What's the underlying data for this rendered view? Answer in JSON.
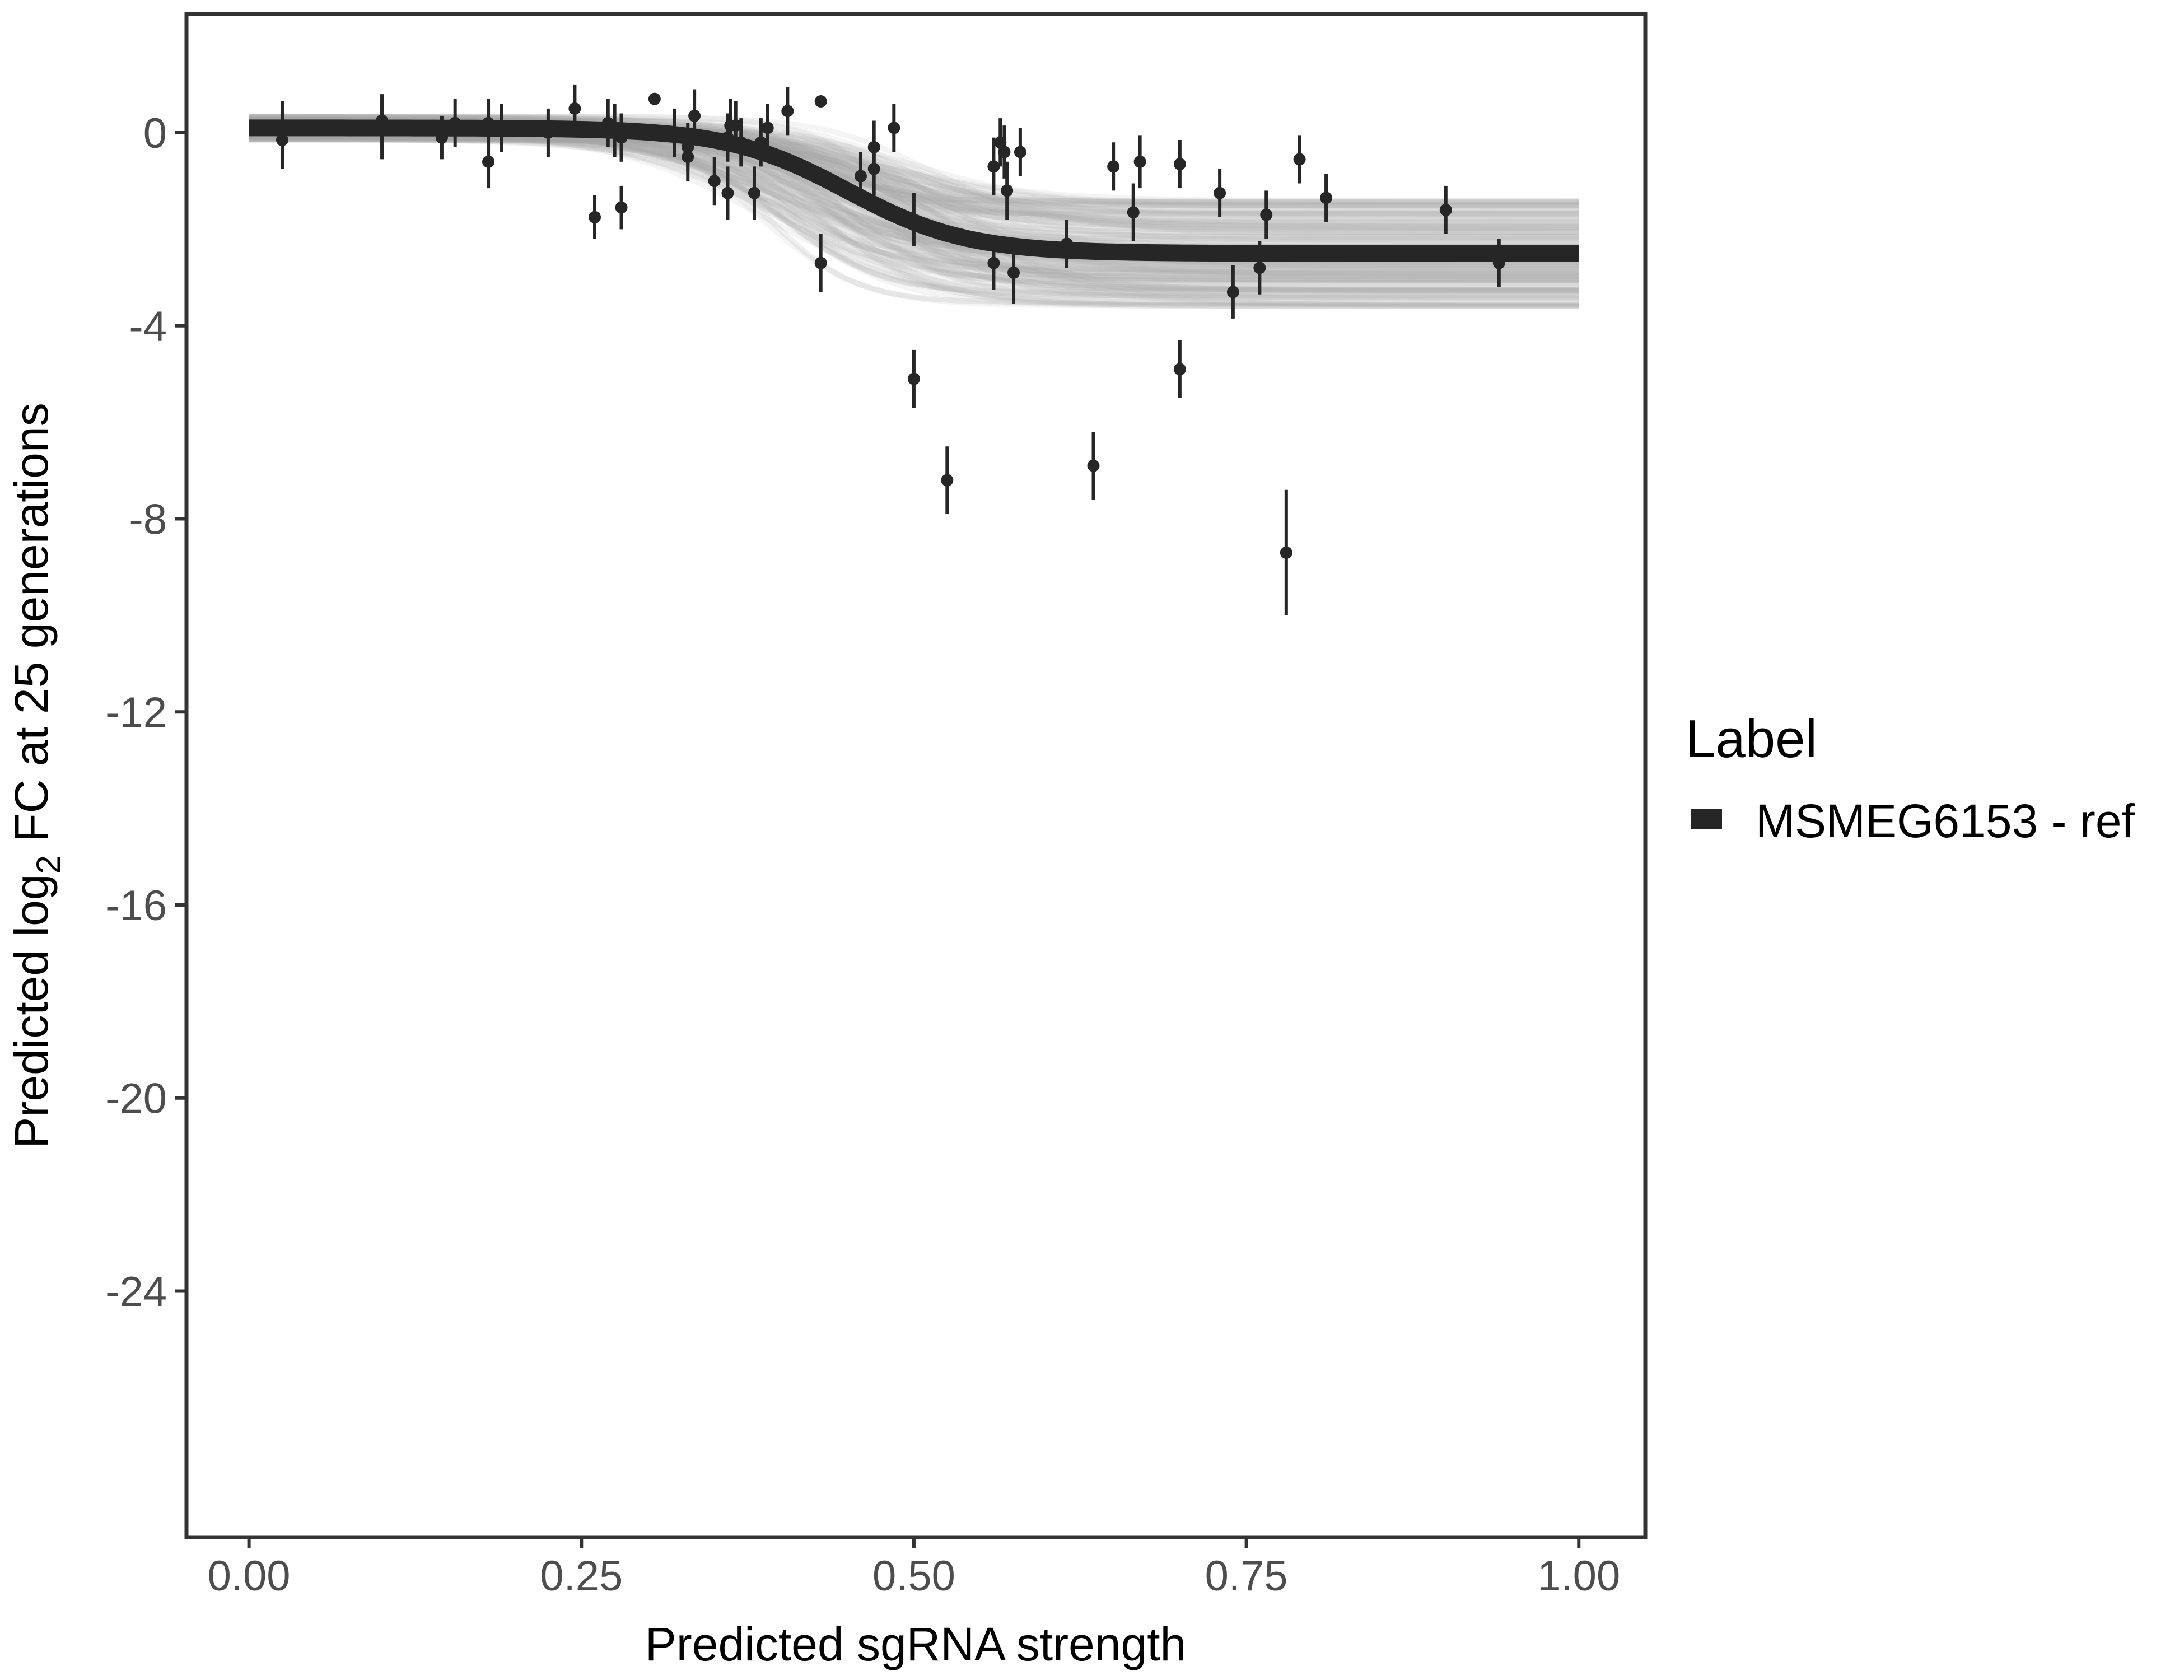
{
  "chart_data": {
    "type": "scatter",
    "title": "",
    "xlabel": "Predicted sgRNA strength",
    "ylabel_parts": [
      "Predicted  log",
      "2",
      " FC at 25 generations"
    ],
    "xlim": [
      -0.047,
      1.05
    ],
    "ylim": [
      -29.1,
      2.46
    ],
    "x_ticks": [
      0,
      0.25,
      0.5,
      0.75,
      1
    ],
    "x_tick_labels": [
      "0.00",
      "0.25",
      "0.50",
      "0.75",
      "1.00"
    ],
    "y_ticks": [
      0,
      -4,
      -8,
      -12,
      -16,
      -20,
      -24
    ],
    "y_tick_labels": [
      "0",
      "-4",
      "-8",
      "-12",
      "-16",
      "-20",
      "-24"
    ],
    "grid": false,
    "legend": {
      "title": "Label",
      "placement": "right",
      "entries": [
        {
          "label": "MSMEG6153 - ref",
          "color": "#262626"
        }
      ]
    },
    "fit_curve": {
      "model": "logistic",
      "upper": 0.1,
      "lower": -2.5,
      "midpoint": 0.45,
      "scale": 0.045,
      "x_range": [
        0,
        1
      ],
      "color": "#262626",
      "band_color": "#a6a6a6"
    },
    "points": [
      {
        "x": 0.025,
        "y": 0.05,
        "err": 0.6
      },
      {
        "x": 0.025,
        "y": -0.15,
        "err": 0.6
      },
      {
        "x": 0.1,
        "y": 0.25,
        "err": 0.55
      },
      {
        "x": 0.1,
        "y": 0.05,
        "err": 0.6
      },
      {
        "x": 0.145,
        "y": -0.1,
        "err": 0.45
      },
      {
        "x": 0.155,
        "y": 0.2,
        "err": 0.5
      },
      {
        "x": 0.18,
        "y": 0.2,
        "err": 0.5
      },
      {
        "x": 0.18,
        "y": -0.6,
        "err": 0.55
      },
      {
        "x": 0.19,
        "y": 0.1,
        "err": 0.5
      },
      {
        "x": 0.225,
        "y": 0.0,
        "err": 0.5
      },
      {
        "x": 0.245,
        "y": 0.5,
        "err": 0.5
      },
      {
        "x": 0.26,
        "y": -1.75,
        "err": 0.45
      },
      {
        "x": 0.27,
        "y": 0.2,
        "err": 0.5
      },
      {
        "x": 0.275,
        "y": 0.05,
        "err": 0.55
      },
      {
        "x": 0.28,
        "y": -0.1,
        "err": 0.5
      },
      {
        "x": 0.28,
        "y": -1.55,
        "err": 0.45
      },
      {
        "x": 0.305,
        "y": 0.7,
        "err": 0.0
      },
      {
        "x": 0.32,
        "y": 0.0,
        "err": 0.5
      },
      {
        "x": 0.33,
        "y": -0.3,
        "err": 0.5
      },
      {
        "x": 0.33,
        "y": -0.5,
        "err": 0.5
      },
      {
        "x": 0.335,
        "y": 0.35,
        "err": 0.55
      },
      {
        "x": 0.35,
        "y": -1.0,
        "err": 0.5
      },
      {
        "x": 0.36,
        "y": -1.25,
        "err": 0.55
      },
      {
        "x": 0.36,
        "y": -0.1,
        "err": 0.5
      },
      {
        "x": 0.362,
        "y": 0.15,
        "err": 0.55
      },
      {
        "x": 0.366,
        "y": 0.15,
        "err": 0.5
      },
      {
        "x": 0.37,
        "y": -0.2,
        "err": 0.5
      },
      {
        "x": 0.38,
        "y": -1.25,
        "err": 0.55
      },
      {
        "x": 0.385,
        "y": -0.2,
        "err": 0.5
      },
      {
        "x": 0.39,
        "y": 0.1,
        "err": 0.5
      },
      {
        "x": 0.405,
        "y": 0.45,
        "err": 0.5
      },
      {
        "x": 0.43,
        "y": -2.7,
        "err": 0.6
      },
      {
        "x": 0.43,
        "y": 0.65,
        "err": 0.0
      },
      {
        "x": 0.46,
        "y": -0.9,
        "err": 0.5
      },
      {
        "x": 0.47,
        "y": -0.3,
        "err": 0.55
      },
      {
        "x": 0.47,
        "y": -0.75,
        "err": 0.55
      },
      {
        "x": 0.485,
        "y": 0.1,
        "err": 0.5
      },
      {
        "x": 0.5,
        "y": -1.8,
        "err": 0.55
      },
      {
        "x": 0.5,
        "y": -5.1,
        "err": 0.6
      },
      {
        "x": 0.525,
        "y": -7.2,
        "err": 0.7
      },
      {
        "x": 0.56,
        "y": -0.7,
        "err": 0.6
      },
      {
        "x": 0.56,
        "y": -2.7,
        "err": 0.55
      },
      {
        "x": 0.565,
        "y": -0.2,
        "err": 0.5
      },
      {
        "x": 0.568,
        "y": -0.4,
        "err": 0.55
      },
      {
        "x": 0.57,
        "y": -1.2,
        "err": 0.6
      },
      {
        "x": 0.575,
        "y": -2.9,
        "err": 0.65
      },
      {
        "x": 0.58,
        "y": -0.4,
        "err": 0.5
      },
      {
        "x": 0.615,
        "y": -2.3,
        "err": 0.5
      },
      {
        "x": 0.635,
        "y": -6.9,
        "err": 0.7
      },
      {
        "x": 0.65,
        "y": -0.7,
        "err": 0.5
      },
      {
        "x": 0.665,
        "y": -1.65,
        "err": 0.6
      },
      {
        "x": 0.67,
        "y": -0.6,
        "err": 0.55
      },
      {
        "x": 0.7,
        "y": -0.65,
        "err": 0.5
      },
      {
        "x": 0.7,
        "y": -4.9,
        "err": 0.6
      },
      {
        "x": 0.73,
        "y": -1.25,
        "err": 0.5
      },
      {
        "x": 0.74,
        "y": -3.3,
        "err": 0.55
      },
      {
        "x": 0.76,
        "y": -2.8,
        "err": 0.55
      },
      {
        "x": 0.765,
        "y": -1.7,
        "err": 0.5
      },
      {
        "x": 0.78,
        "y": -8.7,
        "err": 1.3
      },
      {
        "x": 0.79,
        "y": -0.55,
        "err": 0.5
      },
      {
        "x": 0.81,
        "y": -1.35,
        "err": 0.5
      },
      {
        "x": 0.9,
        "y": -1.6,
        "err": 0.5
      },
      {
        "x": 0.94,
        "y": -2.7,
        "err": 0.5
      }
    ]
  }
}
